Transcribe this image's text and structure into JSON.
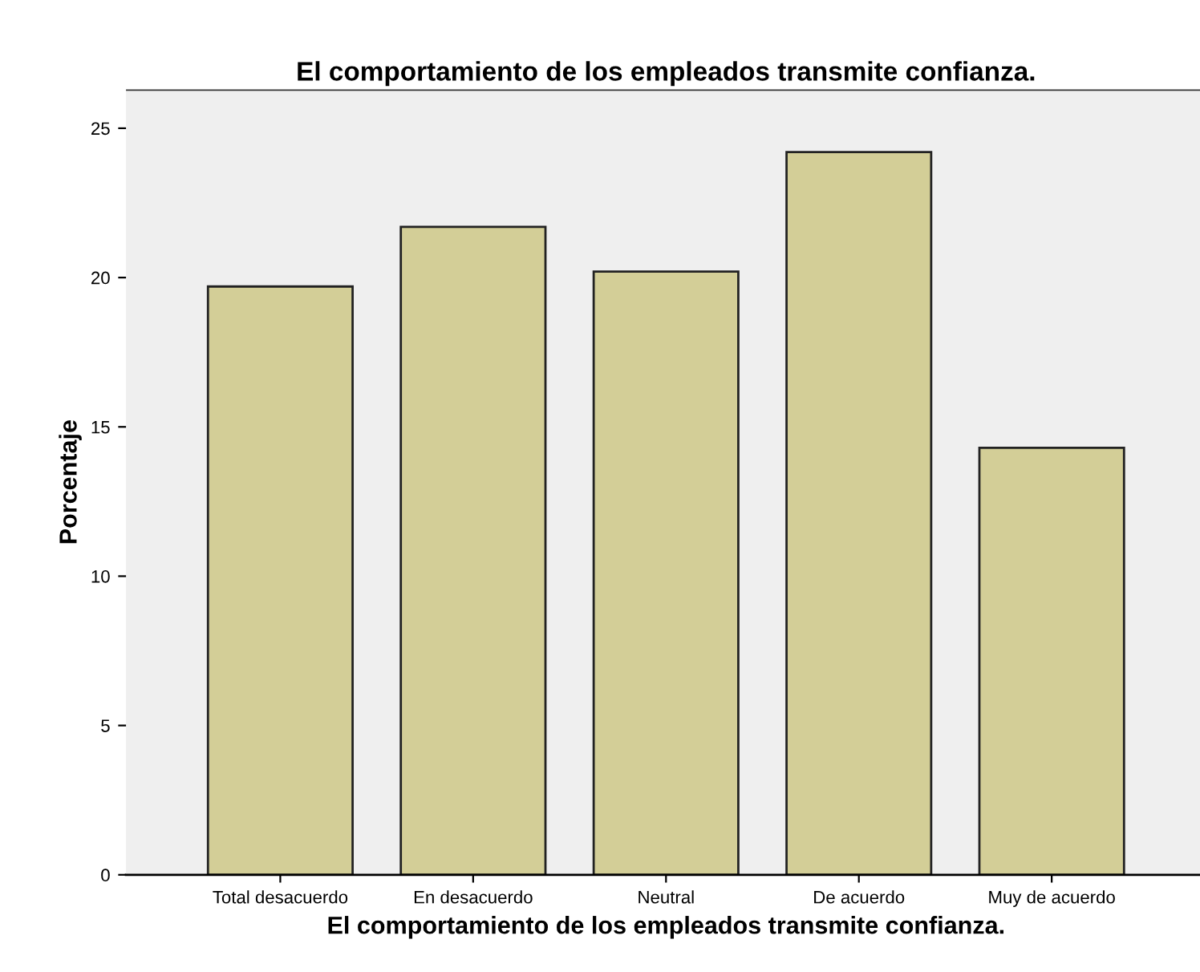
{
  "chart_data": {
    "type": "bar",
    "title": "El comportamiento de los empleados transmite confianza.",
    "xlabel": "El comportamiento de los empleados transmite confianza.",
    "ylabel": "Porcentaje",
    "categories": [
      "Total desacuerdo",
      "En desacuerdo",
      "Neutral",
      "De acuerdo",
      "Muy de acuerdo"
    ],
    "values": [
      19.7,
      21.7,
      20.2,
      24.2,
      14.3
    ],
    "color": "#d3ce97",
    "ylim": [
      0,
      26.3
    ],
    "yticks": [
      0,
      5,
      10,
      15,
      20,
      25
    ],
    "grid": false,
    "legend": false
  }
}
